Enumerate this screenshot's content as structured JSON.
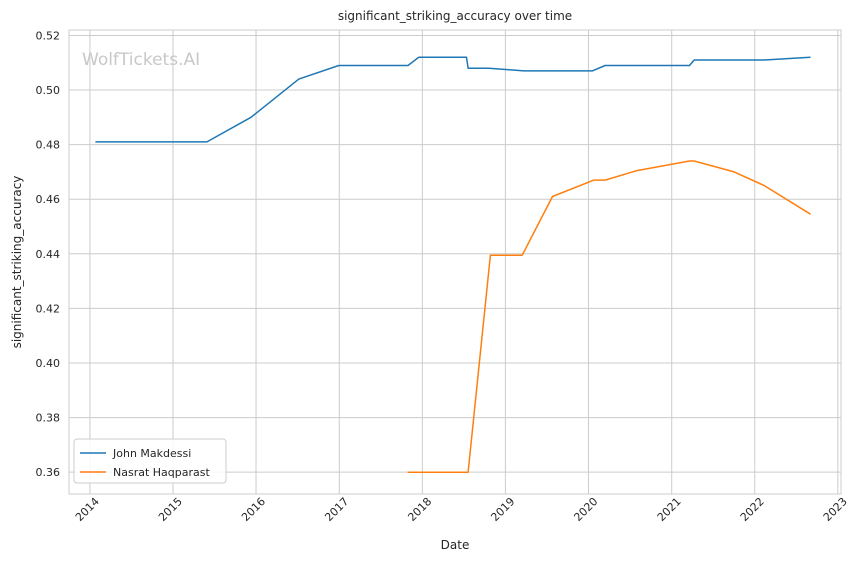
{
  "chart_data": {
    "type": "line",
    "title": "significant_striking_accuracy over time",
    "xlabel": "Date",
    "ylabel": "significant_striking_accuracy",
    "watermark": "WolfTickets.AI",
    "xlim": [
      "2013-10-01",
      "2023-01-15"
    ],
    "ylim": [
      0.352,
      0.522
    ],
    "x_ticks": [
      "2014-01-01",
      "2015-01-01",
      "2016-01-01",
      "2017-01-01",
      "2018-01-01",
      "2019-01-01",
      "2020-01-01",
      "2021-01-01",
      "2022-01-01",
      "2023-01-01"
    ],
    "x_tick_labels": [
      "2014",
      "2015",
      "2016",
      "2017",
      "2018",
      "2019",
      "2020",
      "2021",
      "2022",
      "2023"
    ],
    "y_ticks": [
      0.36,
      0.38,
      0.4,
      0.42,
      0.44,
      0.46,
      0.48,
      0.5,
      0.52
    ],
    "y_tick_labels": [
      "0.36",
      "0.38",
      "0.40",
      "0.42",
      "0.44",
      "0.46",
      "0.48",
      "0.50",
      "0.52"
    ],
    "grid": true,
    "legend_position": "lower-left",
    "series": [
      {
        "name": "John Makdessi",
        "color": "#1f77b4",
        "points": [
          [
            "2014-01-25",
            0.481
          ],
          [
            "2015-05-30",
            0.481
          ],
          [
            "2015-12-10",
            0.49
          ],
          [
            "2016-07-07",
            0.504
          ],
          [
            "2016-12-30",
            0.509
          ],
          [
            "2017-10-30",
            0.509
          ],
          [
            "2017-12-16",
            0.512
          ],
          [
            "2018-07-14",
            0.512
          ],
          [
            "2018-07-21",
            0.508
          ],
          [
            "2018-10-20",
            0.508
          ],
          [
            "2019-03-23",
            0.507
          ],
          [
            "2020-01-18",
            0.507
          ],
          [
            "2020-03-14",
            0.509
          ],
          [
            "2021-03-20",
            0.509
          ],
          [
            "2021-04-10",
            0.511
          ],
          [
            "2022-02-12",
            0.511
          ],
          [
            "2022-09-03",
            0.512
          ]
        ]
      },
      {
        "name": "Nasrat Haqparast",
        "color": "#ff7f0e",
        "points": [
          [
            "2017-10-28",
            0.36
          ],
          [
            "2018-07-21",
            0.36
          ],
          [
            "2018-10-27",
            0.4395
          ],
          [
            "2019-03-16",
            0.4395
          ],
          [
            "2019-07-27",
            0.461
          ],
          [
            "2020-01-25",
            0.467
          ],
          [
            "2020-03-14",
            0.467
          ],
          [
            "2020-08-01",
            0.4705
          ],
          [
            "2021-03-20",
            0.474
          ],
          [
            "2021-04-10",
            0.474
          ],
          [
            "2021-10-02",
            0.47
          ],
          [
            "2022-02-12",
            0.465
          ],
          [
            "2022-09-03",
            0.4545
          ]
        ]
      }
    ]
  }
}
